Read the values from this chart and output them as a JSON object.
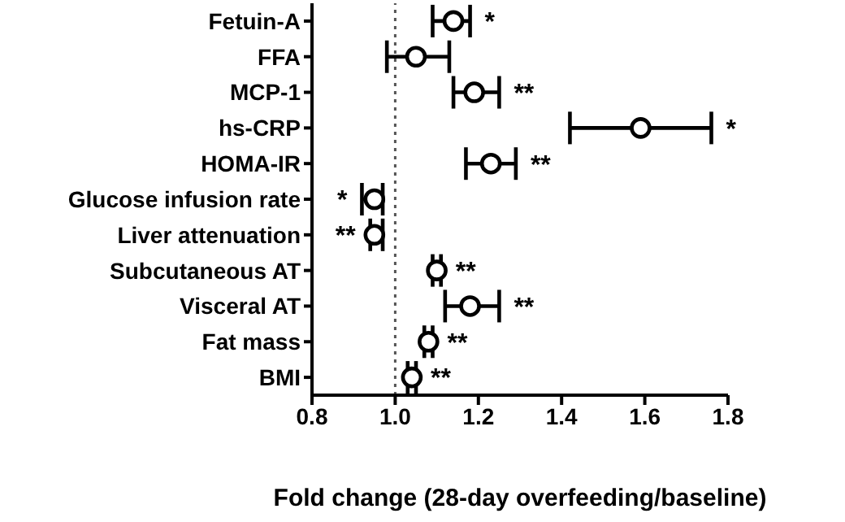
{
  "chart_data": {
    "type": "scatter",
    "orientation": "horizontal",
    "xlabel": "Fold change (28-day overfeeding/baseline)",
    "categories": [
      "Fetuin-A",
      "FFA",
      "MCP-1",
      "hs-CRP",
      "HOMA-IR",
      "Glucose infusion rate",
      "Liver attenuation",
      "Subcutaneous AT",
      "Visceral AT",
      "Fat mass",
      "BMI"
    ],
    "values": [
      1.14,
      1.05,
      1.19,
      1.59,
      1.23,
      0.95,
      0.95,
      1.1,
      1.18,
      1.08,
      1.04
    ],
    "errors": [
      [
        1.09,
        1.18
      ],
      [
        0.98,
        1.13
      ],
      [
        1.14,
        1.25
      ],
      [
        1.42,
        1.76
      ],
      [
        1.17,
        1.29
      ],
      [
        0.92,
        0.97
      ],
      [
        0.94,
        0.97
      ],
      [
        1.09,
        1.11
      ],
      [
        1.12,
        1.25
      ],
      [
        1.07,
        1.09
      ],
      [
        1.03,
        1.05
      ]
    ],
    "value_labels": [
      "*",
      null,
      "**",
      "*",
      "**",
      "*",
      "**",
      "**",
      "**",
      "**",
      "**"
    ],
    "color": "#000000",
    "marker": "circle",
    "xlim": [
      0.8,
      1.8
    ],
    "xticks": [
      {
        "value": 0.8,
        "label": "0.8"
      },
      {
        "value": 1,
        "label": "1.0"
      },
      {
        "value": 1.2,
        "label": "1.2"
      },
      {
        "value": 1.4,
        "label": "1.4"
      },
      {
        "value": 1.6,
        "label": "1.6"
      },
      {
        "value": 1.8,
        "label": "1.8"
      }
    ],
    "ref_lines": [
      {
        "axis": "x",
        "value": 1,
        "line_style": "dotted",
        "color": "#555555"
      }
    ]
  }
}
